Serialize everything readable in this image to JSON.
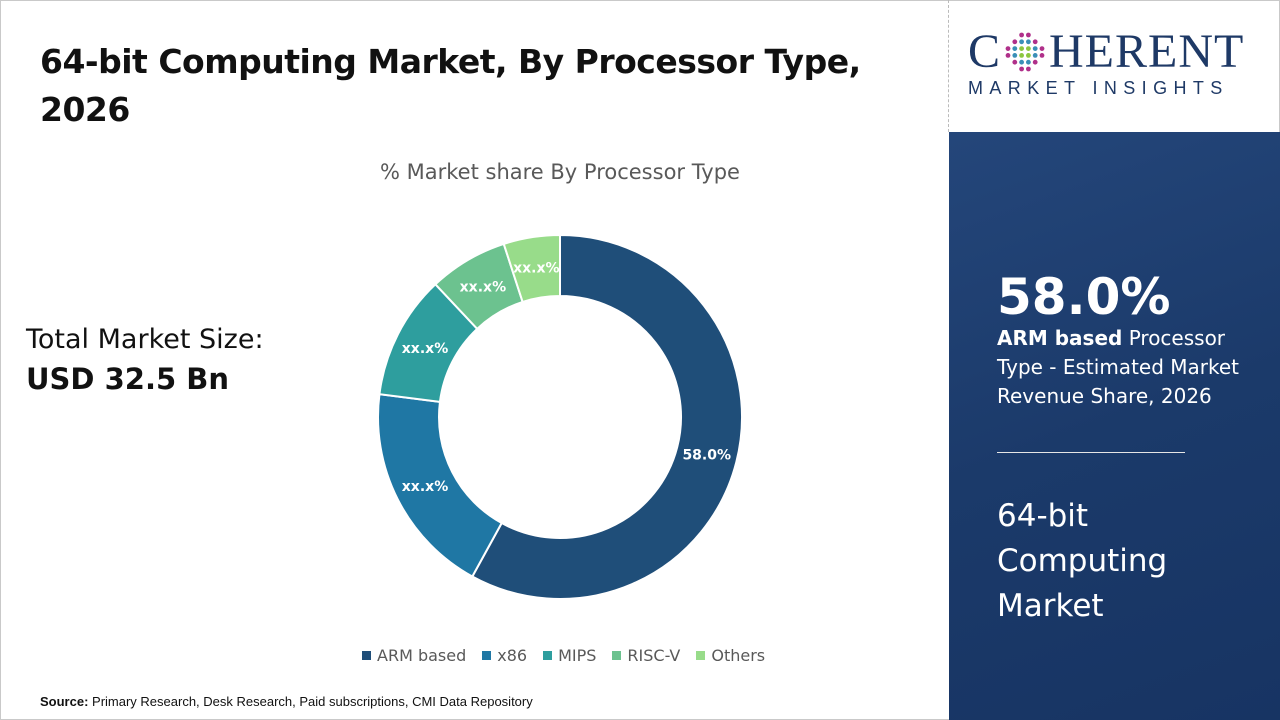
{
  "title": "64-bit Computing Market, By Processor Type, 2026",
  "total_market": {
    "label": "Total Market Size:",
    "value": "USD 32.5 Bn"
  },
  "source": {
    "label": "Source:",
    "text": "Primary Research, Desk Research, Paid subscriptions, CMI Data Repository"
  },
  "logo": {
    "main": "COHERENT",
    "sub": "MARKET INSIGHTS"
  },
  "highlight": {
    "percent": "58.0%",
    "segment_bold": "ARM based",
    "description": "Processor Type - Estimated Market Revenue Share, 2026",
    "market_name": "64-bit Computing Market"
  },
  "chart_data": {
    "type": "pie",
    "donut": true,
    "title": "% Market share By Processor Type",
    "categories": [
      "ARM based",
      "x86",
      "MIPS",
      "RISC-V",
      "Others"
    ],
    "values": [
      58.0,
      19.0,
      11.0,
      7.0,
      5.0
    ],
    "data_labels": [
      "58.0%",
      "xx.x%",
      "xx.x%",
      "xx.x%",
      "xx.x%"
    ],
    "colors": [
      "#1f4e79",
      "#1f77a4",
      "#2e9e9e",
      "#6cc28f",
      "#98dc8a"
    ],
    "legend_position": "bottom"
  }
}
